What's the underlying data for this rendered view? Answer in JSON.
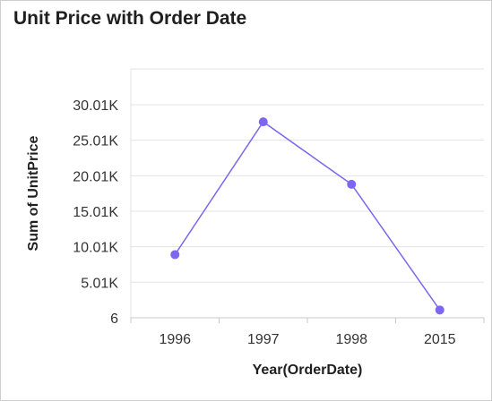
{
  "chart_data": {
    "type": "line",
    "title": "Unit Price with Order Date",
    "xlabel": "Year(OrderDate)",
    "ylabel": "Sum of UnitPrice",
    "categories": [
      "1996",
      "1997",
      "1998",
      "2015"
    ],
    "series": [
      {
        "values": [
          8900,
          27600,
          18800,
          1100
        ]
      }
    ],
    "y_ticks": [
      6,
      5010,
      10010,
      15010,
      20010,
      25010,
      30010
    ],
    "y_tick_labels": [
      "6",
      "5.01K",
      "10.01K",
      "15.01K",
      "20.01K",
      "25.01K",
      "30.01K"
    ],
    "ylim": [
      6,
      34000
    ],
    "grid": true,
    "line_color": "#7b68ee"
  }
}
